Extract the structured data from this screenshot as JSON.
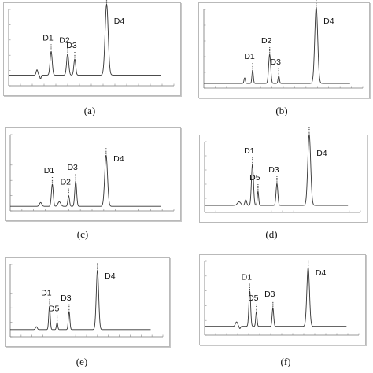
{
  "figure": {
    "panels": [
      {
        "caption": "(a)"
      },
      {
        "caption": "(b)"
      },
      {
        "caption": "(c)"
      },
      {
        "caption": "(d)"
      },
      {
        "caption": "(e)"
      },
      {
        "caption": "(f)"
      }
    ]
  },
  "chart_data": [
    {
      "type": "line",
      "panel": "(a)",
      "x_range": [
        0,
        14
      ],
      "y_range": [
        0,
        100
      ],
      "baseline": 14,
      "peaks": [
        {
          "label": "D1",
          "t": 3.6,
          "h": 31,
          "w": 0.09
        },
        {
          "label": "D2",
          "t": 5.0,
          "h": 28,
          "w": 0.09
        },
        {
          "label": "D3",
          "t": 5.6,
          "h": 21,
          "w": 0.08
        },
        {
          "label": "D4",
          "t": 8.3,
          "h": 93,
          "w": 0.13
        }
      ],
      "minor_peaks": [
        {
          "t": 2.4,
          "h": 7,
          "w": 0.07
        },
        {
          "t": 2.7,
          "h": -5,
          "w": 0.05
        }
      ]
    },
    {
      "type": "line",
      "panel": "(b)",
      "x_range": [
        0,
        14
      ],
      "y_range": [
        0,
        100
      ],
      "baseline": 6,
      "peaks": [
        {
          "label": "D1",
          "t": 4.3,
          "h": 17,
          "w": 0.06
        },
        {
          "label": "D2",
          "t": 5.8,
          "h": 37,
          "w": 0.09
        },
        {
          "label": "D3",
          "t": 6.6,
          "h": 10,
          "w": 0.06
        },
        {
          "label": "D4",
          "t": 9.9,
          "h": 97,
          "w": 0.13
        }
      ],
      "minor_peaks": [
        {
          "t": 3.6,
          "h": 7,
          "w": 0.06
        }
      ]
    },
    {
      "type": "line",
      "panel": "(c)",
      "x_range": [
        0,
        14
      ],
      "y_range": [
        0,
        100
      ],
      "baseline": 6,
      "peaks": [
        {
          "label": "D1",
          "t": 3.6,
          "h": 29,
          "w": 0.08
        },
        {
          "label": "D2",
          "t": 5.0,
          "h": 14,
          "w": 0.07
        },
        {
          "label": "D3",
          "t": 5.6,
          "h": 33,
          "w": 0.08
        },
        {
          "label": "D4",
          "t": 8.2,
          "h": 67,
          "w": 0.12
        }
      ],
      "minor_peaks": [
        {
          "t": 2.6,
          "h": 5,
          "w": 0.1
        },
        {
          "t": 4.2,
          "h": 6,
          "w": 0.12
        }
      ]
    },
    {
      "type": "line",
      "panel": "(d)",
      "x_range": [
        0,
        14
      ],
      "y_range": [
        0,
        100
      ],
      "baseline": 10,
      "peaks": [
        {
          "label": "D1",
          "t": 4.3,
          "h": 58,
          "w": 0.09
        },
        {
          "label": "D5",
          "t": 4.8,
          "h": 20,
          "w": 0.06
        },
        {
          "label": "D3",
          "t": 6.5,
          "h": 31,
          "w": 0.08
        },
        {
          "label": "D4",
          "t": 9.4,
          "h": 100,
          "w": 0.13
        }
      ],
      "minor_peaks": [
        {
          "t": 3.1,
          "h": 5,
          "w": 0.15
        },
        {
          "t": 3.7,
          "h": 8,
          "w": 0.08
        }
      ]
    },
    {
      "type": "line",
      "panel": "(e)",
      "x_range": [
        0,
        14
      ],
      "y_range": [
        0,
        100
      ],
      "baseline": 10,
      "peaks": [
        {
          "label": "D1",
          "t": 3.6,
          "h": 32,
          "w": 0.07
        },
        {
          "label": "D5",
          "t": 4.3,
          "h": 10,
          "w": 0.06
        },
        {
          "label": "D3",
          "t": 5.4,
          "h": 25,
          "w": 0.07
        },
        {
          "label": "D4",
          "t": 8.0,
          "h": 82,
          "w": 0.11
        }
      ],
      "minor_peaks": [
        {
          "t": 2.4,
          "h": 4,
          "w": 0.08
        }
      ]
    },
    {
      "type": "line",
      "panel": "(f)",
      "x_range": [
        0,
        14
      ],
      "y_range": [
        0,
        100
      ],
      "baseline": 12,
      "peaks": [
        {
          "label": "D1",
          "t": 4.1,
          "h": 48,
          "w": 0.08
        },
        {
          "label": "D5",
          "t": 4.7,
          "h": 20,
          "w": 0.06
        },
        {
          "label": "D3",
          "t": 6.2,
          "h": 25,
          "w": 0.07
        },
        {
          "label": "D4",
          "t": 9.4,
          "h": 80,
          "w": 0.12
        }
      ],
      "minor_peaks": [
        {
          "t": 2.9,
          "h": 6,
          "w": 0.1
        },
        {
          "t": 3.2,
          "h": -3,
          "w": 0.06
        }
      ]
    }
  ]
}
